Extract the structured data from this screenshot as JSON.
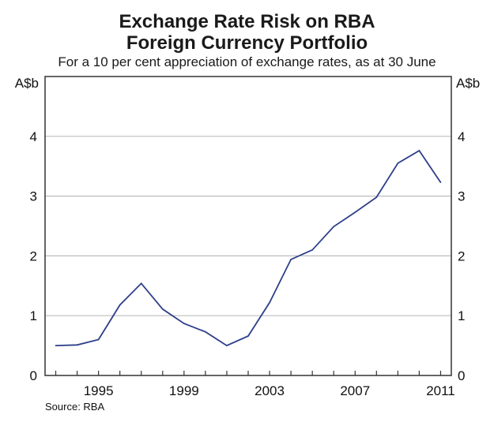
{
  "chart_data": {
    "type": "line",
    "title": "Exchange Rate Risk on RBA Foreign Currency Portfolio",
    "title_lines": [
      "Exchange Rate Risk on RBA",
      "Foreign Currency Portfolio"
    ],
    "subtitle": "For a 10 per cent appreciation of exchange rates, as at 30 June",
    "ylabel_left": "A$b",
    "ylabel_right": "A$b",
    "xlabel": "",
    "ylim": [
      0,
      5
    ],
    "yticks": [
      0,
      1,
      2,
      3,
      4
    ],
    "ytick_labels": [
      "0",
      "1",
      "2",
      "3",
      "4"
    ],
    "xlim": [
      1992.5,
      2011.5
    ],
    "xtick_labels": [
      "1995",
      "1999",
      "2003",
      "2007",
      "2011"
    ],
    "xtick_label_years": [
      1995,
      1999,
      2003,
      2007,
      2011
    ],
    "grid": true,
    "legend": "none",
    "source": "Source: RBA",
    "series": [
      {
        "name": "Exchange rate risk",
        "color": "#2e3f8a",
        "x": [
          1993,
          1994,
          1995,
          1996,
          1997,
          1998,
          1999,
          2000,
          2001,
          2002,
          2003,
          2004,
          2005,
          2006,
          2007,
          2008,
          2009,
          2010,
          2011
        ],
        "values": [
          0.5,
          0.51,
          0.6,
          1.18,
          1.54,
          1.11,
          0.87,
          0.73,
          0.5,
          0.66,
          1.22,
          1.94,
          2.1,
          2.49,
          2.73,
          2.98,
          3.55,
          3.76,
          3.23
        ]
      }
    ]
  }
}
